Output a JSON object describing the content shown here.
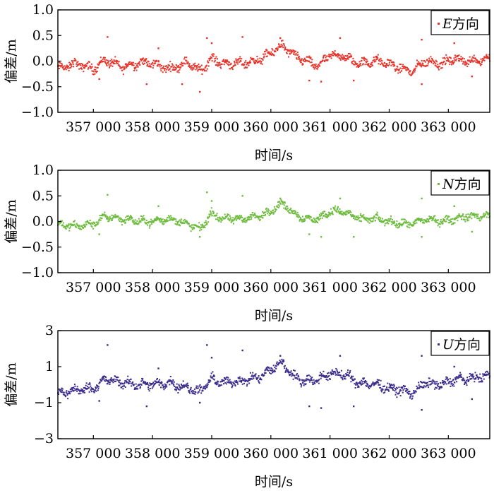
{
  "chart_data": [
    {
      "type": "scatter",
      "panel": "E",
      "color": "#e63228",
      "legend": {
        "prefix": "E",
        "suffix": "方向"
      },
      "ylabel": "偏差/m",
      "xlabel": "时间/s",
      "ylim": [
        -1.0,
        1.0
      ],
      "yticks": [
        -1.0,
        -0.5,
        0.0,
        0.5,
        1.0
      ],
      "ytick_labels": [
        "−1.0",
        "−0.5",
        "0.0",
        "0.5",
        "1.0"
      ],
      "xlim": [
        356400,
        363700
      ],
      "xticks": [
        357000,
        358000,
        359000,
        360000,
        361000,
        362000,
        363000
      ],
      "xtick_labels": [
        "357 000",
        "358 000",
        "359 000",
        "360 000",
        "361 000",
        "362 000",
        "363 000"
      ],
      "legend_position": "top-right",
      "trend": [
        [
          356400,
          -0.15
        ],
        [
          356700,
          -0.05
        ],
        [
          357000,
          -0.15
        ],
        [
          357200,
          0.02
        ],
        [
          357500,
          -0.12
        ],
        [
          357800,
          -0.02
        ],
        [
          358000,
          -0.05
        ],
        [
          358300,
          -0.15
        ],
        [
          358600,
          -0.02
        ],
        [
          358800,
          -0.2
        ],
        [
          359000,
          0.05
        ],
        [
          359200,
          -0.05
        ],
        [
          359500,
          -0.05
        ],
        [
          359800,
          0.02
        ],
        [
          360000,
          0.15
        ],
        [
          360100,
          0.25
        ],
        [
          360200,
          0.3
        ],
        [
          360400,
          0.1
        ],
        [
          360600,
          0.0
        ],
        [
          360800,
          -0.1
        ],
        [
          361000,
          0.12
        ],
        [
          361200,
          0.1
        ],
        [
          361500,
          -0.05
        ],
        [
          361800,
          0.0
        ],
        [
          362000,
          -0.05
        ],
        [
          362200,
          -0.15
        ],
        [
          362400,
          -0.2
        ],
        [
          362600,
          0.0
        ],
        [
          362900,
          -0.05
        ],
        [
          363100,
          0.05
        ],
        [
          363300,
          0.0
        ],
        [
          363700,
          0.05
        ]
      ],
      "spread": 0.12,
      "outliers": [
        [
          357240,
          0.47
        ],
        [
          357100,
          -0.35
        ],
        [
          357900,
          -0.45
        ],
        [
          358100,
          0.25
        ],
        [
          358500,
          -0.45
        ],
        [
          358800,
          -0.6
        ],
        [
          358920,
          0.45
        ],
        [
          359000,
          0.35
        ],
        [
          359520,
          0.47
        ],
        [
          360160,
          0.45
        ],
        [
          360650,
          -0.38
        ],
        [
          360850,
          -0.4
        ],
        [
          361170,
          0.45
        ],
        [
          361400,
          -0.38
        ],
        [
          362550,
          0.42
        ],
        [
          362550,
          -0.45
        ],
        [
          363100,
          0.35
        ],
        [
          363400,
          -0.3
        ]
      ]
    },
    {
      "type": "scatter",
      "panel": "N",
      "color": "#6cbb3c",
      "legend": {
        "prefix": "N",
        "suffix": "方向"
      },
      "ylabel": "偏差/m",
      "xlabel": "时间/s",
      "ylim": [
        -1.0,
        1.0
      ],
      "yticks": [
        -1.0,
        -0.5,
        0.0,
        0.5,
        1.0
      ],
      "ytick_labels": [
        "−1.0",
        "−0.5",
        "0.0",
        "0.5",
        "1.0"
      ],
      "xlim": [
        356400,
        363700
      ],
      "xticks": [
        357000,
        358000,
        359000,
        360000,
        361000,
        362000,
        363000
      ],
      "xtick_labels": [
        "357 000",
        "358 000",
        "359 000",
        "360 000",
        "361 000",
        "362 000",
        "363 000"
      ],
      "legend_position": "top-right",
      "trend": [
        [
          356400,
          -0.05
        ],
        [
          356700,
          -0.1
        ],
        [
          357000,
          -0.05
        ],
        [
          357200,
          0.1
        ],
        [
          357500,
          0.05
        ],
        [
          357800,
          0.0
        ],
        [
          358000,
          0.0
        ],
        [
          358300,
          0.05
        ],
        [
          358600,
          -0.05
        ],
        [
          358800,
          -0.15
        ],
        [
          359000,
          0.15
        ],
        [
          359200,
          0.05
        ],
        [
          359500,
          0.05
        ],
        [
          359800,
          0.1
        ],
        [
          360000,
          0.2
        ],
        [
          360100,
          0.3
        ],
        [
          360200,
          0.35
        ],
        [
          360400,
          0.15
        ],
        [
          360600,
          0.05
        ],
        [
          360800,
          0.05
        ],
        [
          361000,
          0.2
        ],
        [
          361200,
          0.2
        ],
        [
          361500,
          0.05
        ],
        [
          361800,
          0.05
        ],
        [
          362000,
          0.0
        ],
        [
          362200,
          -0.05
        ],
        [
          362400,
          -0.05
        ],
        [
          362600,
          0.05
        ],
        [
          362900,
          0.0
        ],
        [
          363100,
          0.05
        ],
        [
          363300,
          0.1
        ],
        [
          363700,
          0.1
        ]
      ],
      "spread": 0.1,
      "outliers": [
        [
          357240,
          0.52
        ],
        [
          357100,
          -0.25
        ],
        [
          358100,
          0.3
        ],
        [
          358800,
          -0.3
        ],
        [
          358920,
          0.57
        ],
        [
          359000,
          0.4
        ],
        [
          359520,
          0.5
        ],
        [
          360160,
          0.45
        ],
        [
          360650,
          -0.25
        ],
        [
          360850,
          -0.3
        ],
        [
          361170,
          0.45
        ],
        [
          361400,
          -0.3
        ],
        [
          362550,
          0.45
        ],
        [
          362550,
          -0.3
        ],
        [
          363100,
          0.3
        ],
        [
          363400,
          -0.2
        ]
      ]
    },
    {
      "type": "scatter",
      "panel": "U",
      "color": "#3a2a8c",
      "legend": {
        "prefix": "U",
        "suffix": "方向"
      },
      "ylabel": "偏差/m",
      "xlabel": "时间/s",
      "ylim": [
        -3,
        3
      ],
      "yticks": [
        -3,
        -1,
        1,
        3
      ],
      "ytick_labels": [
        "−3",
        "−1",
        "1",
        "3"
      ],
      "xlim": [
        356400,
        363700
      ],
      "xticks": [
        357000,
        358000,
        359000,
        360000,
        361000,
        362000,
        363000
      ],
      "xtick_labels": [
        "357 000",
        "358 000",
        "359 000",
        "360 000",
        "361 000",
        "362 000",
        "363 000"
      ],
      "legend_position": "top-right",
      "trend": [
        [
          356400,
          -0.5
        ],
        [
          356700,
          -0.3
        ],
        [
          357000,
          -0.2
        ],
        [
          357200,
          0.3
        ],
        [
          357500,
          0.1
        ],
        [
          357800,
          0.0
        ],
        [
          358000,
          0.0
        ],
        [
          358300,
          0.1
        ],
        [
          358600,
          -0.2
        ],
        [
          358800,
          -0.4
        ],
        [
          359000,
          0.3
        ],
        [
          359200,
          0.1
        ],
        [
          359500,
          0.2
        ],
        [
          359800,
          0.4
        ],
        [
          360000,
          0.8
        ],
        [
          360100,
          1.1
        ],
        [
          360200,
          1.2
        ],
        [
          360400,
          0.4
        ],
        [
          360600,
          0.2
        ],
        [
          360800,
          0.3
        ],
        [
          361000,
          0.6
        ],
        [
          361200,
          0.6
        ],
        [
          361500,
          0.1
        ],
        [
          361800,
          0.0
        ],
        [
          362000,
          -0.2
        ],
        [
          362200,
          -0.3
        ],
        [
          362400,
          -0.5
        ],
        [
          362600,
          0.1
        ],
        [
          362900,
          0.0
        ],
        [
          363100,
          0.3
        ],
        [
          363300,
          0.3
        ],
        [
          363700,
          0.5
        ]
      ],
      "spread": 0.35,
      "outliers": [
        [
          357240,
          2.2
        ],
        [
          357100,
          -0.9
        ],
        [
          357900,
          -1.2
        ],
        [
          358100,
          0.9
        ],
        [
          358800,
          -1.0
        ],
        [
          358920,
          2.2
        ],
        [
          359000,
          1.5
        ],
        [
          359520,
          1.9
        ],
        [
          360160,
          1.6
        ],
        [
          360650,
          -1.2
        ],
        [
          360850,
          -1.3
        ],
        [
          361170,
          1.6
        ],
        [
          361400,
          -1.2
        ],
        [
          362550,
          1.6
        ],
        [
          362550,
          -1.4
        ],
        [
          363100,
          1.0
        ],
        [
          363400,
          -0.8
        ]
      ]
    }
  ]
}
